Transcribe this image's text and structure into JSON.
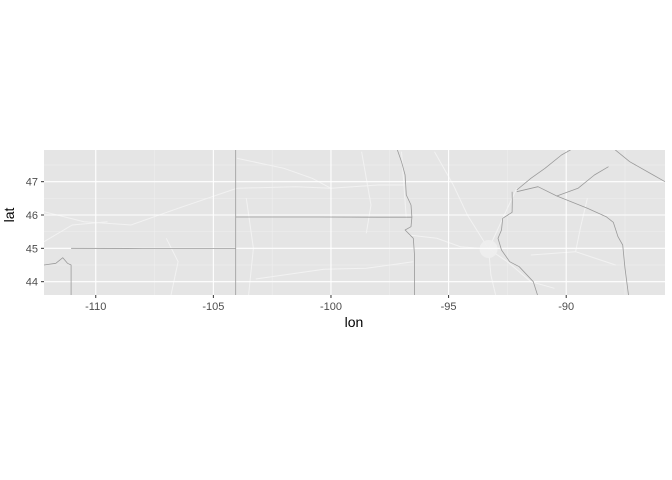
{
  "chart_data": {
    "type": "map",
    "title": "",
    "xlabel": "lon",
    "ylabel": "lat",
    "xlim": [
      -112.2,
      -85.8
    ],
    "ylim": [
      43.6,
      47.95
    ],
    "x_ticks": [
      {
        "value": -110,
        "label": "-110"
      },
      {
        "value": -105,
        "label": "-105"
      },
      {
        "value": -100,
        "label": "-100"
      },
      {
        "value": -95,
        "label": "-95"
      },
      {
        "value": -90,
        "label": "-90"
      }
    ],
    "y_ticks": [
      {
        "value": 44,
        "label": "44"
      },
      {
        "value": 45,
        "label": "45"
      },
      {
        "value": 46,
        "label": "46"
      },
      {
        "value": 47,
        "label": "47"
      }
    ],
    "grid": true,
    "colors": {
      "panel_background": "#e5e5e5",
      "grid_major": "#ffffff",
      "grid_minor": "#f0f0f0",
      "border_lines": "#9a9a9a",
      "road_lines": "#f2f2f2",
      "axis_text": "#4d4d4d",
      "axis_title": "#000000"
    }
  }
}
